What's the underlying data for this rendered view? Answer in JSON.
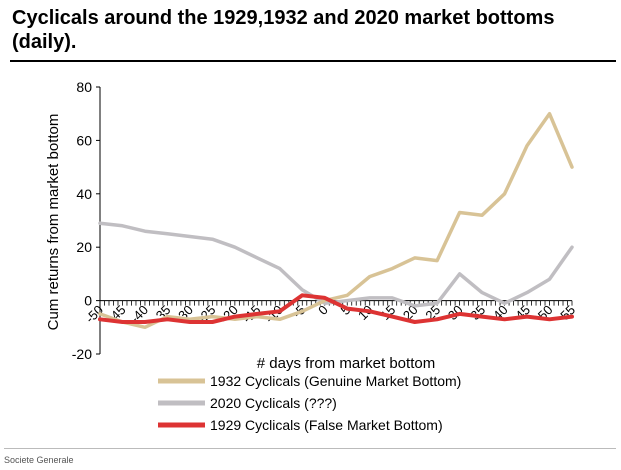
{
  "title": "Cyclicals around the 1929,1932 and 2020 market bottoms (daily).",
  "source": "Societe Generale",
  "chart_data": {
    "type": "line",
    "title": "Cyclicals around the 1929,1932 and 2020 market bottoms (daily).",
    "xlabel": "# days from market bottom",
    "ylabel": "Cum returns from market bottom",
    "xlim": [
      -50,
      55
    ],
    "ylim": [
      -20,
      80
    ],
    "x_ticks": [
      -50,
      -45,
      -40,
      -35,
      -30,
      -25,
      -20,
      -15,
      -10,
      -5,
      0,
      5,
      10,
      15,
      20,
      25,
      30,
      35,
      40,
      45,
      50,
      55
    ],
    "y_ticks": [
      -20,
      0,
      20,
      40,
      60,
      80
    ],
    "grid": false,
    "legend_position": "bottom",
    "x": [
      -50,
      -45,
      -40,
      -35,
      -30,
      -25,
      -20,
      -15,
      -10,
      -5,
      0,
      5,
      10,
      15,
      20,
      25,
      30,
      35,
      40,
      45,
      50,
      55
    ],
    "series": [
      {
        "name": "1932 Cyclicals (Genuine Market Bottom)",
        "color": "#d8c396",
        "values": [
          -5,
          -8,
          -10,
          -6,
          -7,
          -6,
          -7,
          -6,
          -7,
          -4,
          0,
          2,
          9,
          12,
          16,
          15,
          33,
          32,
          40,
          58,
          70,
          50
        ]
      },
      {
        "name": "2020 Cyclicals (???)",
        "color": "#c0bec2",
        "values": [
          29,
          28,
          26,
          25,
          24,
          23,
          20,
          16,
          12,
          4,
          -1,
          0,
          1,
          1,
          -2,
          -1,
          10,
          3,
          -1,
          3,
          8,
          20
        ]
      },
      {
        "name": "1929 Cyclicals (False Market Bottom)",
        "color": "#dd3333",
        "values": [
          -7,
          -8,
          -8,
          -7,
          -8,
          -8,
          -6,
          -5,
          -4,
          2,
          1,
          -3,
          -4,
          -6,
          -8,
          -7,
          -5,
          -6,
          -7,
          -6,
          -7,
          -6
        ]
      }
    ]
  }
}
